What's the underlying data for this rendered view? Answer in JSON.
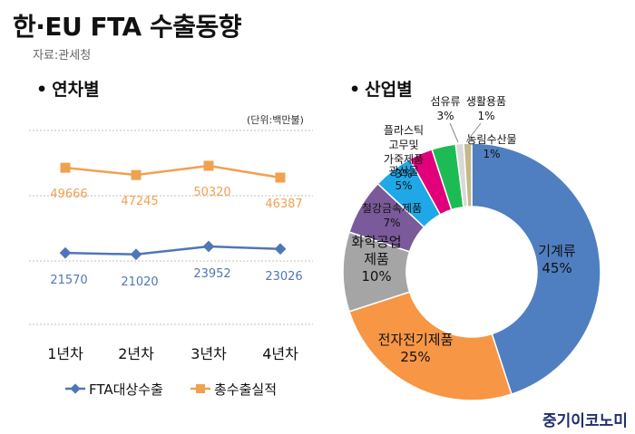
{
  "title": "한·EU FTA 수출동향",
  "source": "자료:관세청",
  "brand": "중기이코노미",
  "colors": {
    "fta": "#4f77b6",
    "total": "#f0a14f"
  },
  "chart_data": [
    {
      "type": "line",
      "section_title": "연차별",
      "unit_note": "(단위:백만불)",
      "categories": [
        "1년차",
        "2년차",
        "3년차",
        "4년차"
      ],
      "series": [
        {
          "name": "FTA대상수출",
          "values": [
            21570,
            21020,
            23952,
            23026
          ],
          "labels": [
            "21570",
            "21020",
            "23952",
            "23026"
          ]
        },
        {
          "name": "총수출실적",
          "values": [
            49666,
            47245,
            50320,
            46387
          ],
          "labels": [
            "49666",
            "47245",
            "50320",
            "46387"
          ]
        }
      ],
      "legend_position": "bottom",
      "grid": true
    },
    {
      "type": "pie",
      "donut": true,
      "section_title": "산업별",
      "slices": [
        {
          "label": "기계류",
          "pct": "45%",
          "value": 45,
          "color": "#4f7fc1"
        },
        {
          "label": "전자전기제품",
          "pct": "25%",
          "value": 25,
          "color": "#f79645"
        },
        {
          "label": "화학공업 제품",
          "pct": "10%",
          "value": 10,
          "color": "#a5a5a5"
        },
        {
          "label": "철강금속제품",
          "pct": "7%",
          "value": 7,
          "color": "#7a5a9a"
        },
        {
          "label": "광산물",
          "pct": "5%",
          "value": 5,
          "color": "#1fa8e8"
        },
        {
          "label": "플라스틱 고무및 가죽제품",
          "pct": "3%",
          "value": 3,
          "color": "#e2007a"
        },
        {
          "label": "섬유류",
          "pct": "3%",
          "value": 3,
          "color": "#1dbb54"
        },
        {
          "label": "생활용품",
          "pct": "1%",
          "value": 1,
          "color": "#d9d9d9"
        },
        {
          "label": "농림수산물",
          "pct": "1%",
          "value": 1,
          "color": "#c3b98a"
        }
      ]
    }
  ]
}
